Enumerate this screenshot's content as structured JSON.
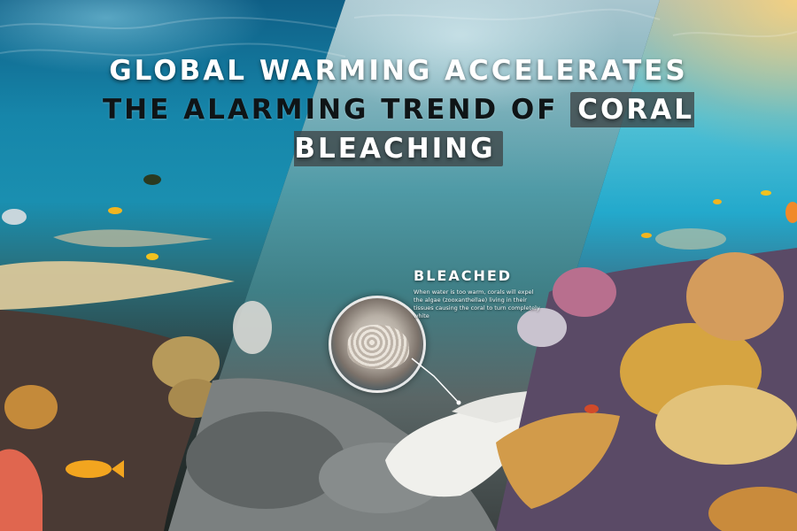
{
  "headline": {
    "line1": "GLOBAL WARMING ACCELERATES",
    "line2_prefix": "THE ALARMING TREND OF",
    "line2_highlight": "CORAL BLEACHING"
  },
  "callout": {
    "title": "BLEACHED",
    "body": "When water is too warm, corals will expel the algae (zooxanthellae) living in their tissues causing the coral to turn completely white"
  },
  "colors": {
    "healthy_water": "#1a8fb0",
    "bleached_water": "#7fb2bc",
    "recovery_glow": "#ffd278",
    "headline_text": "#ffffff",
    "highlight_box": "#3c4042"
  }
}
